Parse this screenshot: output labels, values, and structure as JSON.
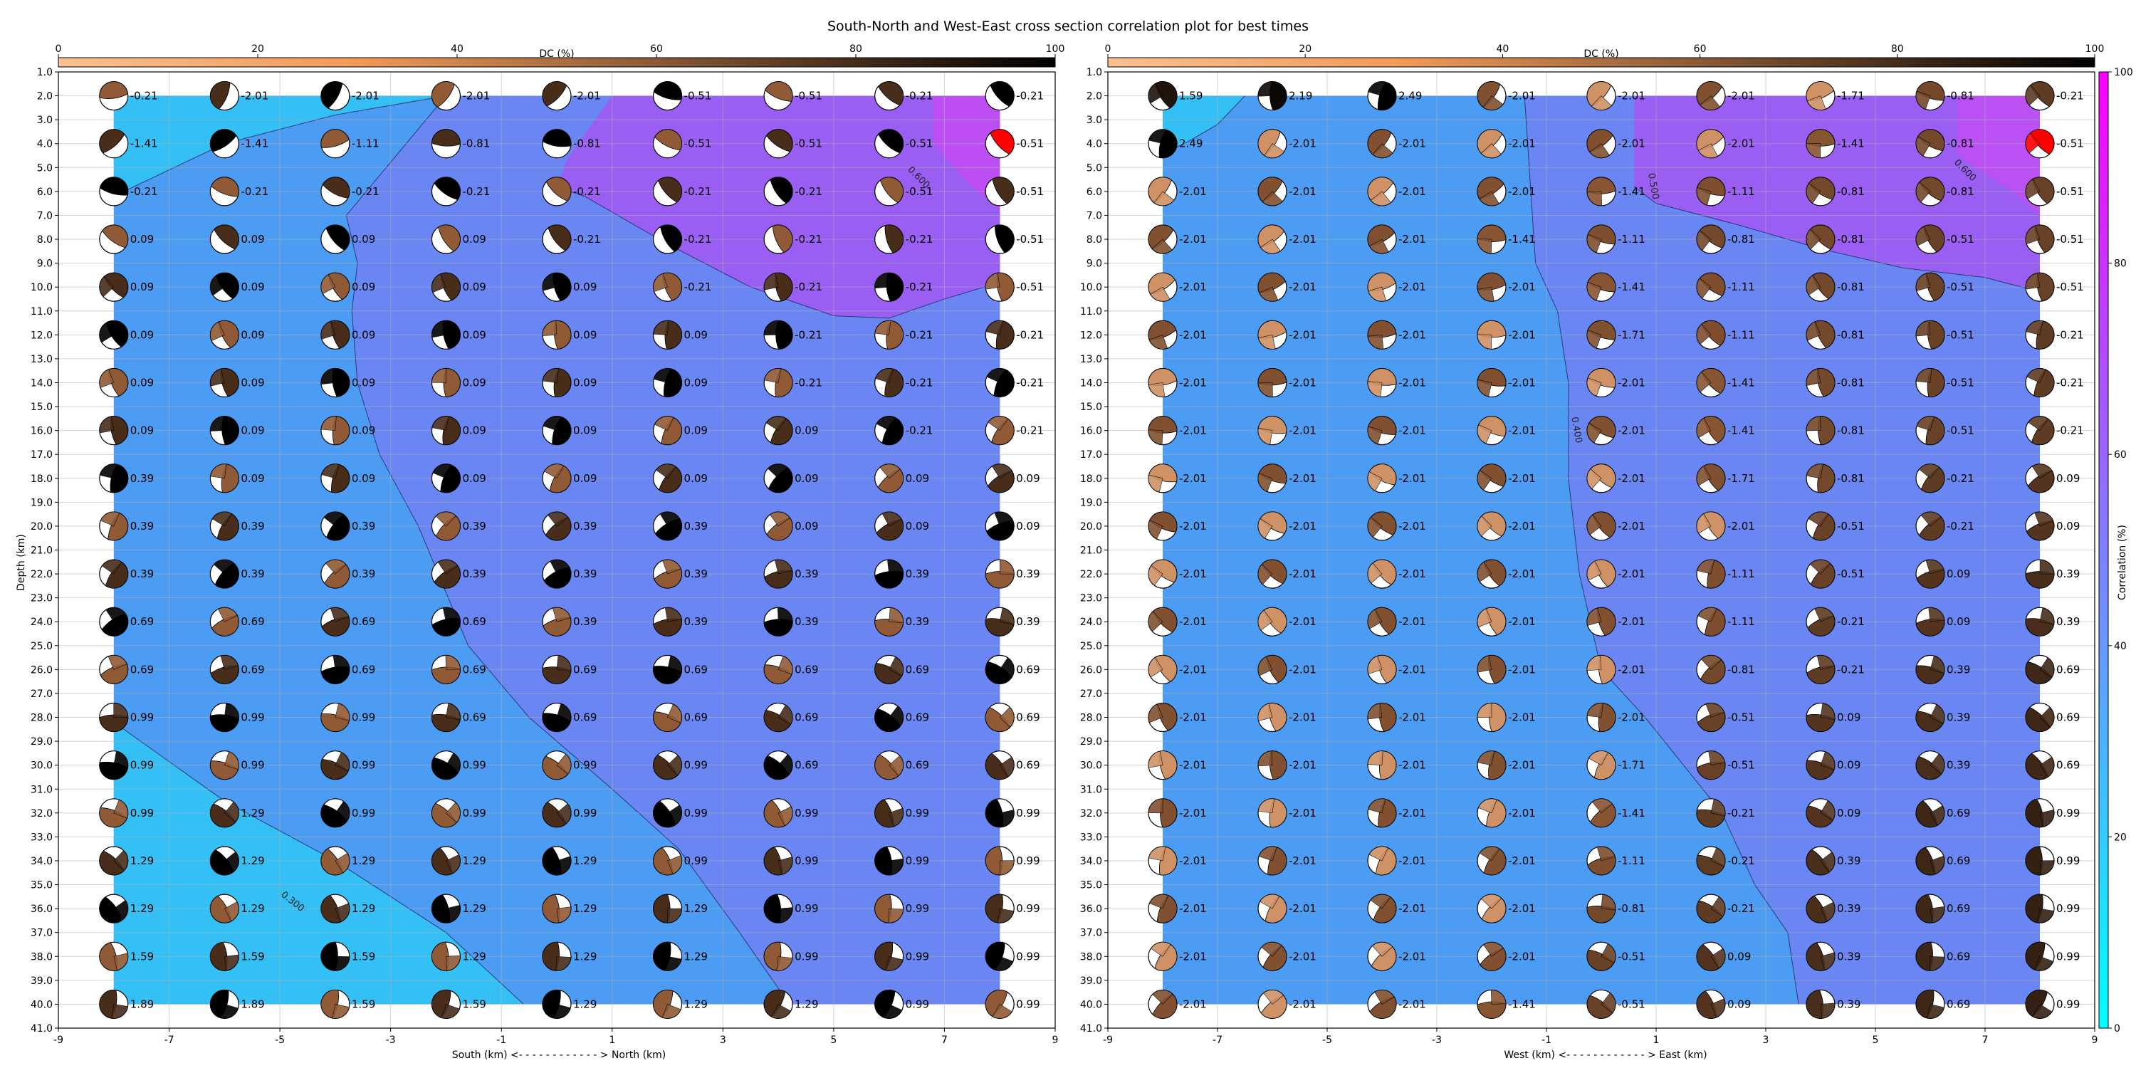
{
  "figure": {
    "title": "South-North and West-East cross section correlation plot for best times"
  },
  "colors": {
    "low_corr": "#35c0f5",
    "mid_corr": "#4b9cf2",
    "mid2_corr": "#6a86f2",
    "high_corr": "#9a5ef2",
    "top_corr": "#c34cf2",
    "best_beachball": "#ff0000",
    "dc_low": "#fdc090",
    "dc_high": "#000000"
  },
  "chart_data": [
    {
      "type": "heatmap",
      "panel": "south-north",
      "xlabel": "South (km) <- - - - - - - - - - - - > North (km)",
      "ylabel": "Depth (km)",
      "xlim": [
        -9,
        9
      ],
      "ylim": [
        41,
        1
      ],
      "xticks": [
        "-9",
        "-7",
        "-5",
        "-3",
        "-1",
        "1",
        "3",
        "5",
        "7",
        "9"
      ],
      "x": [
        -8,
        -6,
        -4,
        -2,
        0,
        2,
        4,
        6,
        8
      ],
      "depths": [
        2,
        4,
        6,
        8,
        10,
        12,
        14,
        16,
        18,
        20,
        22,
        24,
        26,
        28,
        30,
        32,
        34,
        36,
        38,
        40
      ],
      "values": [
        [
          "-0.21",
          "-2.01",
          "-2.01",
          "-2.01",
          "-2.01",
          "-0.51",
          "-0.51",
          "-0.21",
          "-0.21"
        ],
        [
          "-1.41",
          "-1.41",
          "-1.11",
          "-0.81",
          "-0.81",
          "-0.51",
          "-0.51",
          "-0.51",
          "-0.51"
        ],
        [
          "-0.21",
          "-0.21",
          "-0.21",
          "-0.21",
          "-0.21",
          "-0.21",
          "-0.21",
          "-0.51",
          "-0.51"
        ],
        [
          "0.09",
          "0.09",
          "0.09",
          "0.09",
          "-0.21",
          "-0.21",
          "-0.21",
          "-0.21",
          "-0.51"
        ],
        [
          "0.09",
          "0.09",
          "0.09",
          "0.09",
          "0.09",
          "-0.21",
          "-0.21",
          "-0.21",
          "-0.51"
        ],
        [
          "0.09",
          "0.09",
          "0.09",
          "0.09",
          "0.09",
          "0.09",
          "-0.21",
          "-0.21",
          "-0.21"
        ],
        [
          "0.09",
          "0.09",
          "0.09",
          "0.09",
          "0.09",
          "0.09",
          "-0.21",
          "-0.21",
          "-0.21"
        ],
        [
          "0.09",
          "0.09",
          "0.09",
          "0.09",
          "0.09",
          "0.09",
          "0.09",
          "-0.21",
          "-0.21"
        ],
        [
          "0.39",
          "0.09",
          "0.09",
          "0.09",
          "0.09",
          "0.09",
          "0.09",
          "0.09",
          "0.09"
        ],
        [
          "0.39",
          "0.39",
          "0.39",
          "0.39",
          "0.39",
          "0.39",
          "0.09",
          "0.09",
          "0.09"
        ],
        [
          "0.39",
          "0.39",
          "0.39",
          "0.39",
          "0.39",
          "0.39",
          "0.39",
          "0.39",
          "0.39"
        ],
        [
          "0.69",
          "0.69",
          "0.69",
          "0.69",
          "0.39",
          "0.39",
          "0.39",
          "0.39",
          "0.39"
        ],
        [
          "0.69",
          "0.69",
          "0.69",
          "0.69",
          "0.69",
          "0.69",
          "0.69",
          "0.69",
          "0.69"
        ],
        [
          "0.99",
          "0.99",
          "0.99",
          "0.69",
          "0.69",
          "0.69",
          "0.69",
          "0.69",
          "0.69"
        ],
        [
          "0.99",
          "0.99",
          "0.99",
          "0.99",
          "0.99",
          "0.99",
          "0.69",
          "0.69",
          "0.69"
        ],
        [
          "0.99",
          "1.29",
          "0.99",
          "0.99",
          "0.99",
          "0.99",
          "0.99",
          "0.99",
          "0.99"
        ],
        [
          "1.29",
          "1.29",
          "1.29",
          "1.29",
          "1.29",
          "0.99",
          "0.99",
          "0.99",
          "0.99"
        ],
        [
          "1.29",
          "1.29",
          "1.29",
          "1.29",
          "1.29",
          "1.29",
          "0.99",
          "0.99",
          "0.99"
        ],
        [
          "1.59",
          "1.59",
          "1.59",
          "1.29",
          "1.29",
          "1.29",
          "0.99",
          "0.99",
          "0.99"
        ],
        [
          "1.89",
          "1.89",
          "1.59",
          "1.59",
          "1.29",
          "1.29",
          "1.29",
          "0.99",
          "0.99"
        ]
      ],
      "best": {
        "x": 8,
        "depth": 4
      },
      "contours": [
        {
          "label": "0.600",
          "label_at": [
            6.5,
            5.5
          ]
        },
        {
          "label": "0.300",
          "label_at": [
            -4.8,
            35.8
          ]
        }
      ]
    },
    {
      "type": "heatmap",
      "panel": "west-east",
      "xlabel": "West (km) <- - - - - - - - - - - - > East (km)",
      "ylabel": "",
      "xlim": [
        -9,
        9
      ],
      "ylim": [
        41,
        1
      ],
      "xticks": [
        "-9",
        "-7",
        "-5",
        "-3",
        "-1",
        "1",
        "3",
        "5",
        "7",
        "9"
      ],
      "x": [
        -8,
        -6,
        -4,
        -2,
        0,
        2,
        4,
        6,
        8
      ],
      "depths": [
        2,
        4,
        6,
        8,
        10,
        12,
        14,
        16,
        18,
        20,
        22,
        24,
        26,
        28,
        30,
        32,
        34,
        36,
        38,
        40
      ],
      "values": [
        [
          "1.59",
          "2.19",
          "2.49",
          "-2.01",
          "-2.01",
          "-2.01",
          "-1.71",
          "-0.81",
          "-0.21"
        ],
        [
          "2.49",
          "-2.01",
          "-2.01",
          "-2.01",
          "-2.01",
          "-2.01",
          "-1.41",
          "-0.81",
          "-0.51"
        ],
        [
          "-2.01",
          "-2.01",
          "-2.01",
          "-2.01",
          "-1.41",
          "-1.11",
          "-0.81",
          "-0.81",
          "-0.51"
        ],
        [
          "-2.01",
          "-2.01",
          "-2.01",
          "-1.41",
          "-1.11",
          "-0.81",
          "-0.81",
          "-0.51",
          "-0.51"
        ],
        [
          "-2.01",
          "-2.01",
          "-2.01",
          "-2.01",
          "-1.41",
          "-1.11",
          "-0.81",
          "-0.51",
          "-0.51"
        ],
        [
          "-2.01",
          "-2.01",
          "-2.01",
          "-2.01",
          "-1.71",
          "-1.11",
          "-0.81",
          "-0.51",
          "-0.21"
        ],
        [
          "-2.01",
          "-2.01",
          "-2.01",
          "-2.01",
          "-2.01",
          "-1.41",
          "-0.81",
          "-0.51",
          "-0.21"
        ],
        [
          "-2.01",
          "-2.01",
          "-2.01",
          "-2.01",
          "-2.01",
          "-1.41",
          "-0.81",
          "-0.51",
          "-0.21"
        ],
        [
          "-2.01",
          "-2.01",
          "-2.01",
          "-2.01",
          "-2.01",
          "-1.71",
          "-0.81",
          "-0.21",
          "0.09"
        ],
        [
          "-2.01",
          "-2.01",
          "-2.01",
          "-2.01",
          "-2.01",
          "-2.01",
          "-0.51",
          "-0.21",
          "0.09"
        ],
        [
          "-2.01",
          "-2.01",
          "-2.01",
          "-2.01",
          "-2.01",
          "-1.11",
          "-0.51",
          "0.09",
          "0.39"
        ],
        [
          "-2.01",
          "-2.01",
          "-2.01",
          "-2.01",
          "-2.01",
          "-1.11",
          "-0.21",
          "0.09",
          "0.39"
        ],
        [
          "-2.01",
          "-2.01",
          "-2.01",
          "-2.01",
          "-2.01",
          "-0.81",
          "-0.21",
          "0.39",
          "0.69"
        ],
        [
          "-2.01",
          "-2.01",
          "-2.01",
          "-2.01",
          "-2.01",
          "-0.51",
          "0.09",
          "0.39",
          "0.69"
        ],
        [
          "-2.01",
          "-2.01",
          "-2.01",
          "-2.01",
          "-1.71",
          "-0.51",
          "0.09",
          "0.39",
          "0.69"
        ],
        [
          "-2.01",
          "-2.01",
          "-2.01",
          "-2.01",
          "-1.41",
          "-0.21",
          "0.09",
          "0.69",
          "0.99"
        ],
        [
          "-2.01",
          "-2.01",
          "-2.01",
          "-2.01",
          "-1.11",
          "-0.21",
          "0.39",
          "0.69",
          "0.99"
        ],
        [
          "-2.01",
          "-2.01",
          "-2.01",
          "-2.01",
          "-0.81",
          "-0.21",
          "0.39",
          "0.69",
          "0.99"
        ],
        [
          "-2.01",
          "-2.01",
          "-2.01",
          "-2.01",
          "-0.51",
          "0.09",
          "0.39",
          "0.69",
          "0.99"
        ],
        [
          "-2.01",
          "-2.01",
          "-2.01",
          "-1.41",
          "-0.51",
          "0.09",
          "0.39",
          "0.69",
          "0.99"
        ]
      ],
      "best": {
        "x": 8,
        "depth": 4
      },
      "contours": [
        {
          "label": "0.500",
          "label_at": [
            0.9,
            5.8
          ]
        },
        {
          "label": "0.600",
          "label_at": [
            6.6,
            5.2
          ]
        },
        {
          "label": "0.400",
          "label_at": [
            -0.5,
            16.0
          ]
        }
      ]
    }
  ],
  "yticks": [
    "1.0",
    "2.0",
    "3.0",
    "4.0",
    "5.0",
    "6.0",
    "7.0",
    "8.0",
    "9.0",
    "10.0",
    "11.0",
    "12.0",
    "13.0",
    "14.0",
    "15.0",
    "16.0",
    "17.0",
    "18.0",
    "19.0",
    "20.0",
    "21.0",
    "22.0",
    "23.0",
    "24.0",
    "25.0",
    "26.0",
    "27.0",
    "28.0",
    "29.0",
    "30.0",
    "31.0",
    "32.0",
    "33.0",
    "34.0",
    "35.0",
    "36.0",
    "37.0",
    "38.0",
    "39.0",
    "40.0",
    "41.0"
  ],
  "dc_colorbar": {
    "label": "DC (%)",
    "ticks": [
      "0",
      "20",
      "40",
      "60",
      "80",
      "100"
    ],
    "range": [
      0,
      100
    ]
  },
  "corr_colorbar": {
    "label": "Correlation (%)",
    "ticks": [
      "0",
      "20",
      "40",
      "60",
      "80",
      "100"
    ],
    "range": [
      0,
      100
    ]
  }
}
